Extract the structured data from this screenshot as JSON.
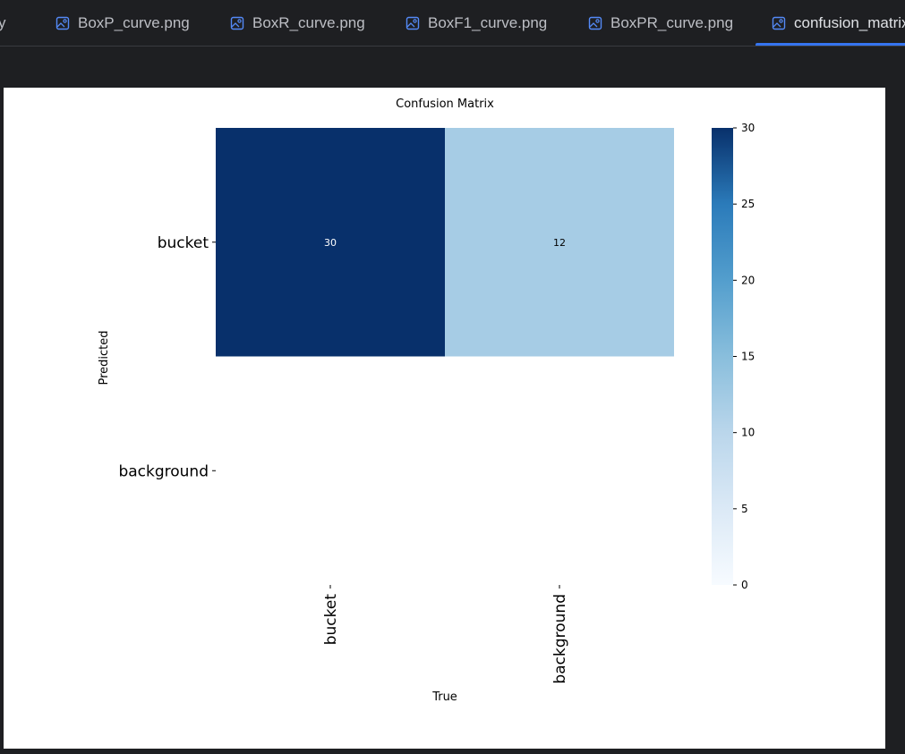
{
  "tabs": [
    {
      "label": "y",
      "icon": "image-icon",
      "active": false
    },
    {
      "label": "BoxP_curve.png",
      "icon": "image-icon",
      "active": false
    },
    {
      "label": "BoxR_curve.png",
      "icon": "image-icon",
      "active": false
    },
    {
      "label": "BoxF1_curve.png",
      "icon": "image-icon",
      "active": false
    },
    {
      "label": "BoxPR_curve.png",
      "icon": "image-icon",
      "active": false
    },
    {
      "label": "confusion_matrix",
      "icon": "image-icon",
      "active": true
    }
  ],
  "colors": {
    "tab_text": "#bcbec4",
    "active_underline": "#3574f0",
    "icon_blue": "#548af7",
    "background": "#1e1f22",
    "cell_high": "#08306b",
    "cell_mid": "#94c4df",
    "cell_empty": "#ffffff"
  },
  "chart_data": {
    "type": "heatmap",
    "title": "Confusion Matrix",
    "xlabel": "True",
    "ylabel": "Predicted",
    "x_categories": [
      "bucket",
      "background"
    ],
    "y_categories": [
      "bucket",
      "background"
    ],
    "values": [
      [
        30,
        12
      ],
      [
        null,
        null
      ]
    ],
    "colorbar": {
      "min": 0,
      "max": 30,
      "ticks": [
        "0",
        "5",
        "10",
        "15",
        "20",
        "25",
        "30"
      ],
      "colormap": "Blues"
    }
  }
}
